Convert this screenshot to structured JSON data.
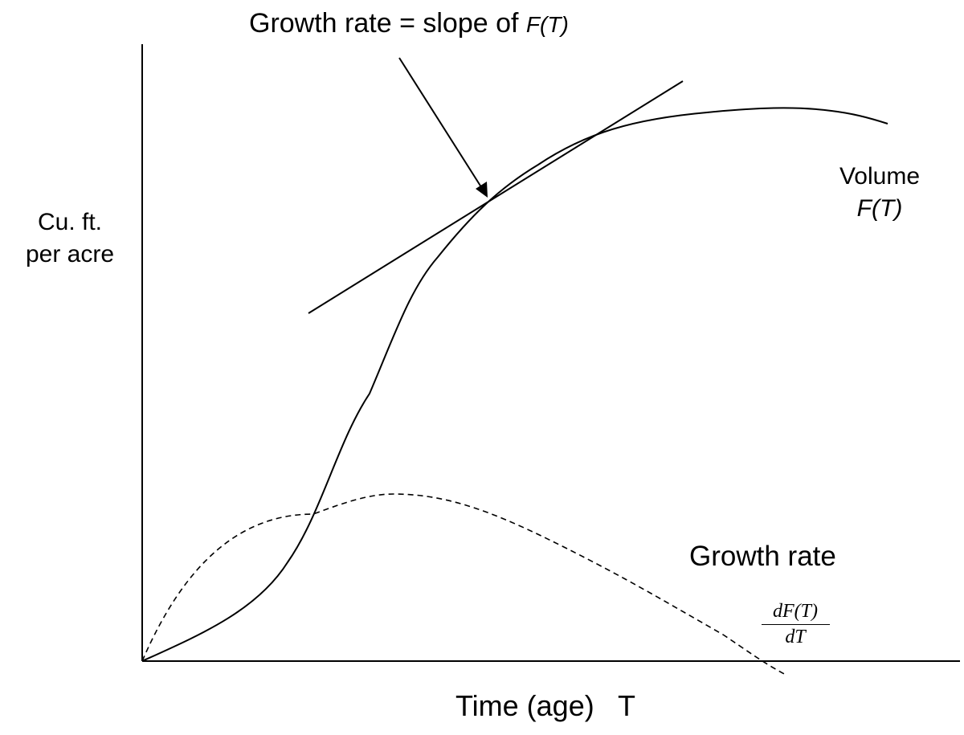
{
  "figure": {
    "title_prefix": "Growth rate = slope of ",
    "title_func": "F(T)",
    "y_label_line1": "Cu. ft.",
    "y_label_line2": "per acre",
    "x_label": "Time (age)   T",
    "volume_label": "Volume",
    "volume_func": "F(T)",
    "growth_label": "Growth rate",
    "derivative_numerator": "dF(T)",
    "derivative_denominator": "dT"
  },
  "colors": {
    "ink": "#000000",
    "background": "#ffffff"
  }
}
